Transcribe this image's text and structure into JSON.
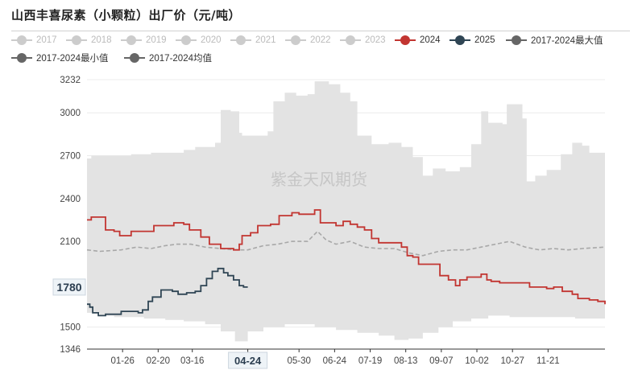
{
  "title": "山西丰喜尿素（小颗粒）出厂价（元/吨）",
  "watermark": "紫金天风期货",
  "colors": {
    "y2024": "#c23531",
    "y2025": "#2f4554",
    "band": "#e3e3e3",
    "avg": "#a8a8a8",
    "disabled": "#cccccc",
    "stat": "#666666"
  },
  "legend": [
    {
      "label": "2017",
      "color": "#cccccc",
      "active": false
    },
    {
      "label": "2018",
      "color": "#cccccc",
      "active": false
    },
    {
      "label": "2019",
      "color": "#cccccc",
      "active": false
    },
    {
      "label": "2020",
      "color": "#cccccc",
      "active": false
    },
    {
      "label": "2021",
      "color": "#cccccc",
      "active": false
    },
    {
      "label": "2022",
      "color": "#cccccc",
      "active": false
    },
    {
      "label": "2023",
      "color": "#cccccc",
      "active": false
    },
    {
      "label": "2024",
      "color": "#c23531",
      "active": true
    },
    {
      "label": "2025",
      "color": "#2f4554",
      "active": true
    },
    {
      "label": "2017-2024最大值",
      "color": "#666666",
      "active": true
    },
    {
      "label": "2017-2024最小值",
      "color": "#666666",
      "active": true
    },
    {
      "label": "2017-2024均值",
      "color": "#666666",
      "active": true
    }
  ],
  "chart_data": {
    "type": "line",
    "title": "山西丰喜尿素（小颗粒）出厂价（元/吨）",
    "x_unit": "day of year (MM-DD)",
    "xlim": [
      "01-01",
      "12-31"
    ],
    "ylim": [
      1346,
      3232
    ],
    "y_ticks": [
      1346,
      1500,
      1780,
      2100,
      2400,
      2700,
      3000,
      3232
    ],
    "x_ticks": [
      "01-26",
      "02-20",
      "03-16",
      "04-24",
      "05-30",
      "06-24",
      "07-19",
      "08-13",
      "09-07",
      "10-02",
      "10-27",
      "11-21"
    ],
    "axis_pointer": {
      "x": "04-24",
      "y": 1780
    },
    "legend_position": "top",
    "grid": "horizontal",
    "series": [
      {
        "name": "2017-2024最大值",
        "style": "band-upper",
        "points": [
          [
            "01-01",
            2680
          ],
          [
            "01-04",
            2700
          ],
          [
            "01-20",
            2700
          ],
          [
            "02-01",
            2710
          ],
          [
            "02-15",
            2720
          ],
          [
            "03-01",
            2720
          ],
          [
            "03-10",
            2740
          ],
          [
            "03-18",
            2760
          ],
          [
            "04-01",
            2790
          ],
          [
            "04-05",
            3020
          ],
          [
            "04-12",
            3010
          ],
          [
            "04-18",
            2860
          ],
          [
            "04-20",
            2840
          ],
          [
            "05-01",
            2840
          ],
          [
            "05-08",
            2870
          ],
          [
            "05-12",
            3080
          ],
          [
            "05-20",
            3140
          ],
          [
            "05-28",
            3120
          ],
          [
            "06-05",
            3130
          ],
          [
            "06-10",
            3220
          ],
          [
            "06-20",
            3200
          ],
          [
            "06-28",
            3140
          ],
          [
            "07-05",
            3080
          ],
          [
            "07-10",
            2840
          ],
          [
            "07-20",
            2780
          ],
          [
            "08-01",
            2790
          ],
          [
            "08-10",
            2760
          ],
          [
            "08-18",
            2690
          ],
          [
            "08-25",
            2560
          ],
          [
            "09-01",
            2610
          ],
          [
            "09-10",
            2590
          ],
          [
            "09-20",
            2620
          ],
          [
            "09-28",
            2780
          ],
          [
            "10-05",
            3010
          ],
          [
            "10-10",
            2930
          ],
          [
            "10-20",
            2920
          ],
          [
            "10-23",
            3060
          ],
          [
            "10-30",
            3060
          ],
          [
            "11-03",
            2960
          ],
          [
            "11-06",
            2520
          ],
          [
            "11-12",
            2560
          ],
          [
            "11-20",
            2600
          ],
          [
            "11-30",
            2710
          ],
          [
            "12-08",
            2790
          ],
          [
            "12-15",
            2770
          ],
          [
            "12-20",
            2720
          ],
          [
            "12-31",
            2650
          ]
        ]
      },
      {
        "name": "2017-2024最小值",
        "style": "band-lower",
        "points": [
          [
            "01-01",
            1630
          ],
          [
            "01-10",
            1600
          ],
          [
            "01-20",
            1580
          ],
          [
            "02-10",
            1570
          ],
          [
            "02-25",
            1560
          ],
          [
            "03-10",
            1550
          ],
          [
            "03-25",
            1540
          ],
          [
            "04-05",
            1520
          ],
          [
            "04-15",
            1470
          ],
          [
            "04-24",
            1400
          ],
          [
            "05-05",
            1470
          ],
          [
            "05-20",
            1500
          ],
          [
            "06-10",
            1520
          ],
          [
            "06-25",
            1500
          ],
          [
            "07-10",
            1480
          ],
          [
            "07-25",
            1460
          ],
          [
            "08-05",
            1440
          ],
          [
            "08-15",
            1410
          ],
          [
            "08-25",
            1420
          ],
          [
            "09-05",
            1460
          ],
          [
            "09-15",
            1500
          ],
          [
            "09-28",
            1540
          ],
          [
            "10-10",
            1560
          ],
          [
            "10-25",
            1580
          ],
          [
            "11-10",
            1570
          ],
          [
            "11-25",
            1570
          ],
          [
            "12-10",
            1570
          ],
          [
            "12-31",
            1560
          ]
        ]
      },
      {
        "name": "2017-2024均值",
        "style": "dashed",
        "points": [
          [
            "01-01",
            2040
          ],
          [
            "01-10",
            2030
          ],
          [
            "01-25",
            2040
          ],
          [
            "02-05",
            2060
          ],
          [
            "02-15",
            2050
          ],
          [
            "02-25",
            2070
          ],
          [
            "03-05",
            2080
          ],
          [
            "03-15",
            2080
          ],
          [
            "03-25",
            2060
          ],
          [
            "04-05",
            2050
          ],
          [
            "04-15",
            2040
          ],
          [
            "04-24",
            2040
          ],
          [
            "05-05",
            2070
          ],
          [
            "05-15",
            2080
          ],
          [
            "05-25",
            2100
          ],
          [
            "06-05",
            2100
          ],
          [
            "06-12",
            2170
          ],
          [
            "06-18",
            2110
          ],
          [
            "06-25",
            2080
          ],
          [
            "07-05",
            2100
          ],
          [
            "07-15",
            2060
          ],
          [
            "07-25",
            2050
          ],
          [
            "08-05",
            2050
          ],
          [
            "08-15",
            2020
          ],
          [
            "08-25",
            2000
          ],
          [
            "09-05",
            2030
          ],
          [
            "09-15",
            2040
          ],
          [
            "09-25",
            2040
          ],
          [
            "10-05",
            2060
          ],
          [
            "10-15",
            2080
          ],
          [
            "10-25",
            2100
          ],
          [
            "11-05",
            2060
          ],
          [
            "11-15",
            2040
          ],
          [
            "11-25",
            2050
          ],
          [
            "12-05",
            2040
          ],
          [
            "12-15",
            2050
          ],
          [
            "12-31",
            2060
          ]
        ]
      },
      {
        "name": "2024",
        "style": "solid",
        "points": [
          [
            "01-01",
            2250
          ],
          [
            "01-04",
            2270
          ],
          [
            "01-10",
            2270
          ],
          [
            "01-14",
            2180
          ],
          [
            "01-20",
            2170
          ],
          [
            "01-24",
            2140
          ],
          [
            "01-30",
            2140
          ],
          [
            "02-01",
            2170
          ],
          [
            "02-14",
            2170
          ],
          [
            "02-17",
            2210
          ],
          [
            "02-28",
            2210
          ],
          [
            "03-03",
            2230
          ],
          [
            "03-10",
            2220
          ],
          [
            "03-14",
            2180
          ],
          [
            "03-22",
            2130
          ],
          [
            "03-28",
            2080
          ],
          [
            "04-05",
            2050
          ],
          [
            "04-14",
            2040
          ],
          [
            "04-18",
            2080
          ],
          [
            "04-20",
            2140
          ],
          [
            "04-26",
            2160
          ],
          [
            "05-01",
            2210
          ],
          [
            "05-10",
            2220
          ],
          [
            "05-16",
            2280
          ],
          [
            "05-25",
            2300
          ],
          [
            "05-30",
            2290
          ],
          [
            "06-06",
            2290
          ],
          [
            "06-10",
            2320
          ],
          [
            "06-14",
            2230
          ],
          [
            "06-25",
            2210
          ],
          [
            "06-30",
            2240
          ],
          [
            "07-05",
            2220
          ],
          [
            "07-10",
            2200
          ],
          [
            "07-15",
            2180
          ],
          [
            "07-20",
            2120
          ],
          [
            "07-25",
            2090
          ],
          [
            "08-01",
            2090
          ],
          [
            "08-10",
            2060
          ],
          [
            "08-14",
            2000
          ],
          [
            "08-18",
            1990
          ],
          [
            "08-22",
            1940
          ],
          [
            "09-01",
            1940
          ],
          [
            "09-06",
            1860
          ],
          [
            "09-12",
            1830
          ],
          [
            "09-17",
            1790
          ],
          [
            "09-20",
            1830
          ],
          [
            "09-25",
            1850
          ],
          [
            "10-01",
            1850
          ],
          [
            "10-05",
            1870
          ],
          [
            "10-09",
            1830
          ],
          [
            "10-12",
            1820
          ],
          [
            "10-18",
            1810
          ],
          [
            "10-27",
            1810
          ],
          [
            "11-01",
            1810
          ],
          [
            "11-08",
            1780
          ],
          [
            "11-15",
            1780
          ],
          [
            "11-20",
            1770
          ],
          [
            "11-25",
            1780
          ],
          [
            "12-01",
            1750
          ],
          [
            "12-08",
            1730
          ],
          [
            "12-12",
            1700
          ],
          [
            "12-20",
            1690
          ],
          [
            "12-26",
            1680
          ],
          [
            "12-31",
            1660
          ]
        ]
      },
      {
        "name": "2025",
        "style": "solid",
        "points": [
          [
            "01-01",
            1660
          ],
          [
            "01-03",
            1640
          ],
          [
            "01-05",
            1600
          ],
          [
            "01-09",
            1580
          ],
          [
            "01-14",
            1590
          ],
          [
            "01-21",
            1590
          ],
          [
            "01-25",
            1610
          ],
          [
            "02-01",
            1610
          ],
          [
            "02-06",
            1600
          ],
          [
            "02-09",
            1620
          ],
          [
            "02-13",
            1680
          ],
          [
            "02-16",
            1710
          ],
          [
            "02-20",
            1710
          ],
          [
            "02-22",
            1760
          ],
          [
            "02-26",
            1760
          ],
          [
            "03-02",
            1750
          ],
          [
            "03-06",
            1730
          ],
          [
            "03-12",
            1740
          ],
          [
            "03-18",
            1750
          ],
          [
            "03-22",
            1790
          ],
          [
            "03-26",
            1840
          ],
          [
            "03-30",
            1890
          ],
          [
            "04-03",
            1910
          ],
          [
            "04-07",
            1880
          ],
          [
            "04-10",
            1860
          ],
          [
            "04-14",
            1830
          ],
          [
            "04-18",
            1790
          ],
          [
            "04-21",
            1780
          ],
          [
            "04-24",
            1780
          ]
        ]
      }
    ]
  }
}
